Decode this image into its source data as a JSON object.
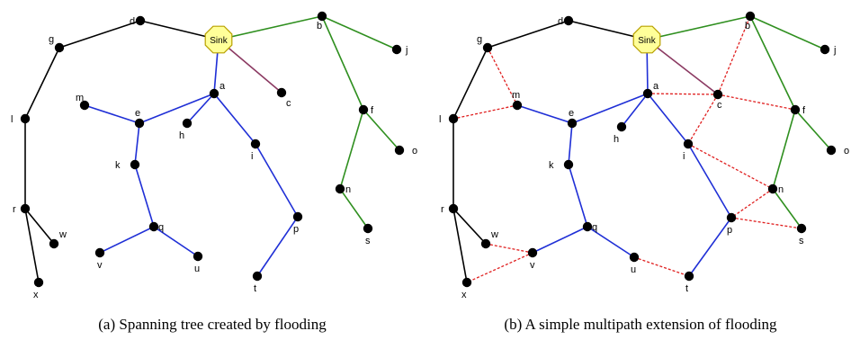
{
  "colors": {
    "black": "#000000",
    "blue": "#1f2fd6",
    "green": "#2f8f1f",
    "maroon": "#8b3a62",
    "red_dashed": "#e02020",
    "sink_fill": "#ffff99",
    "sink_stroke": "#b8a000"
  },
  "diagrams": [
    {
      "caption": "(a) Spanning tree created by flooding",
      "sink_label": "Sink",
      "nodes": {
        "d": "d",
        "g": "g",
        "l": "l",
        "r": "r",
        "w": "w",
        "x": "x",
        "b": "b",
        "j": "j",
        "f": "f",
        "o": "o",
        "n": "n",
        "s": "s",
        "a": "a",
        "c": "c",
        "m": "m",
        "e": "e",
        "h": "h",
        "k": "k",
        "i": "i",
        "q": "q",
        "v": "v",
        "u": "u",
        "p": "p",
        "t": "t"
      }
    },
    {
      "caption": "(b) A simple multipath extension of flooding",
      "sink_label": "Sink",
      "nodes": {
        "d": "d",
        "g": "g",
        "l": "l",
        "r": "r",
        "w": "w",
        "x": "x",
        "b": "b",
        "j": "j",
        "f": "f",
        "o": "o",
        "n": "n",
        "s": "s",
        "a": "a",
        "c": "c",
        "m": "m",
        "e": "e",
        "h": "h",
        "k": "k",
        "i": "i",
        "q": "q",
        "v": "v",
        "u": "u",
        "p": "p",
        "t": "t"
      }
    }
  ]
}
